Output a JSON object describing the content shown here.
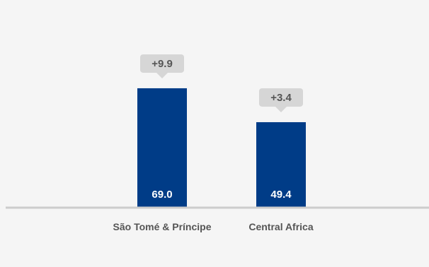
{
  "chart_data": {
    "type": "bar",
    "categories": [
      "São Tomé & Príncipe",
      "Central Africa"
    ],
    "values": [
      69.0,
      49.4
    ],
    "value_labels": [
      "69.0",
      "49.4"
    ],
    "changes": [
      "+9.9",
      "+3.4"
    ],
    "title": "",
    "xlabel": "",
    "ylabel": "",
    "ylim": [
      0,
      100
    ],
    "grid": false,
    "legend": "none"
  },
  "colors": {
    "background": "#f5f5f5",
    "bar": "#003c87",
    "bar_label": "#ffffff",
    "callout_fill": "#d6d6d6",
    "callout_text": "#555555",
    "baseline": "#cccccc",
    "category_text": "#555555"
  }
}
